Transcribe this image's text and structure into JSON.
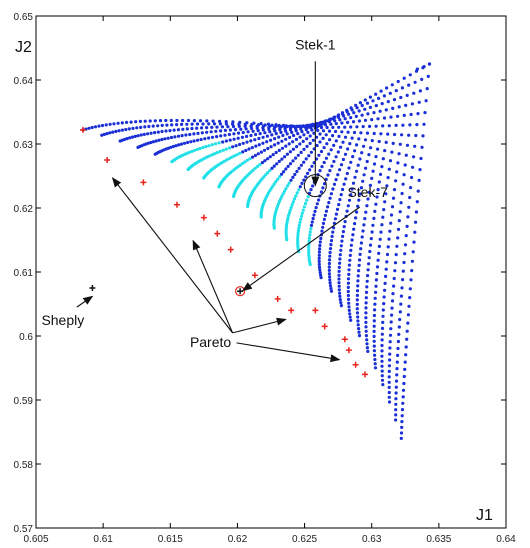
{
  "chart_data": {
    "type": "scatter",
    "xlabel": "J1",
    "ylabel": "J2",
    "xlim": [
      0.605,
      0.64
    ],
    "ylim": [
      0.57,
      0.65
    ],
    "x_ticks": [
      0.605,
      0.61,
      0.615,
      0.62,
      0.625,
      0.63,
      0.635,
      0.64
    ],
    "x_tick_labels": [
      "0.605",
      "0.61",
      "0.615",
      "0.62",
      "0.625",
      "0.63",
      "0.635",
      "0.64"
    ],
    "y_ticks": [
      0.57,
      0.58,
      0.59,
      0.6,
      0.61,
      0.62,
      0.63,
      0.64,
      0.65
    ],
    "y_tick_labels": [
      "0.57",
      "0.58",
      "0.59",
      "0.6",
      "0.61",
      "0.62",
      "0.63",
      "0.64",
      "0.65"
    ],
    "grid": false,
    "colors": {
      "feasible": "#1a2fd6",
      "highlight": "#22e0e8",
      "pareto": "#e8241c",
      "special": "#111111"
    },
    "series": [
      {
        "role": "pareto",
        "marker": "+",
        "points": [
          [
            0.6085,
            0.6322
          ],
          [
            0.6103,
            0.6275
          ],
          [
            0.613,
            0.624
          ],
          [
            0.6155,
            0.6205
          ],
          [
            0.6175,
            0.6185
          ],
          [
            0.6185,
            0.616
          ],
          [
            0.6195,
            0.6135
          ],
          [
            0.6213,
            0.6095
          ],
          [
            0.623,
            0.6058
          ],
          [
            0.624,
            0.604
          ],
          [
            0.6258,
            0.604
          ],
          [
            0.6265,
            0.6015
          ],
          [
            0.628,
            0.5995
          ],
          [
            0.6283,
            0.5978
          ],
          [
            0.6288,
            0.5955
          ],
          [
            0.6295,
            0.594
          ]
        ]
      },
      {
        "role": "special",
        "marker": "+",
        "points": [
          [
            0.6092,
            0.6075
          ],
          [
            0.6202,
            0.607
          ]
        ]
      }
    ],
    "annotations": [
      {
        "text": "Stek-1",
        "x": 0.6258,
        "y": 0.6448,
        "arrow_to": [
          0.6258,
          0.6235
        ]
      },
      {
        "text": "Stek-7",
        "x": 0.6297,
        "y": 0.6217,
        "arrow_to": [
          0.6204,
          0.6071
        ]
      },
      {
        "text": "Sheply",
        "x": 0.607,
        "y": 0.6017,
        "arrow_to": [
          0.6092,
          0.6062
        ]
      },
      {
        "text": "Pareto",
        "x": 0.618,
        "y": 0.5983,
        "arrows_to": [
          [
            0.6107,
            0.6247
          ],
          [
            0.6167,
            0.6149
          ],
          [
            0.6236,
            0.6026
          ],
          [
            0.6276,
            0.5963
          ]
        ]
      }
    ]
  }
}
